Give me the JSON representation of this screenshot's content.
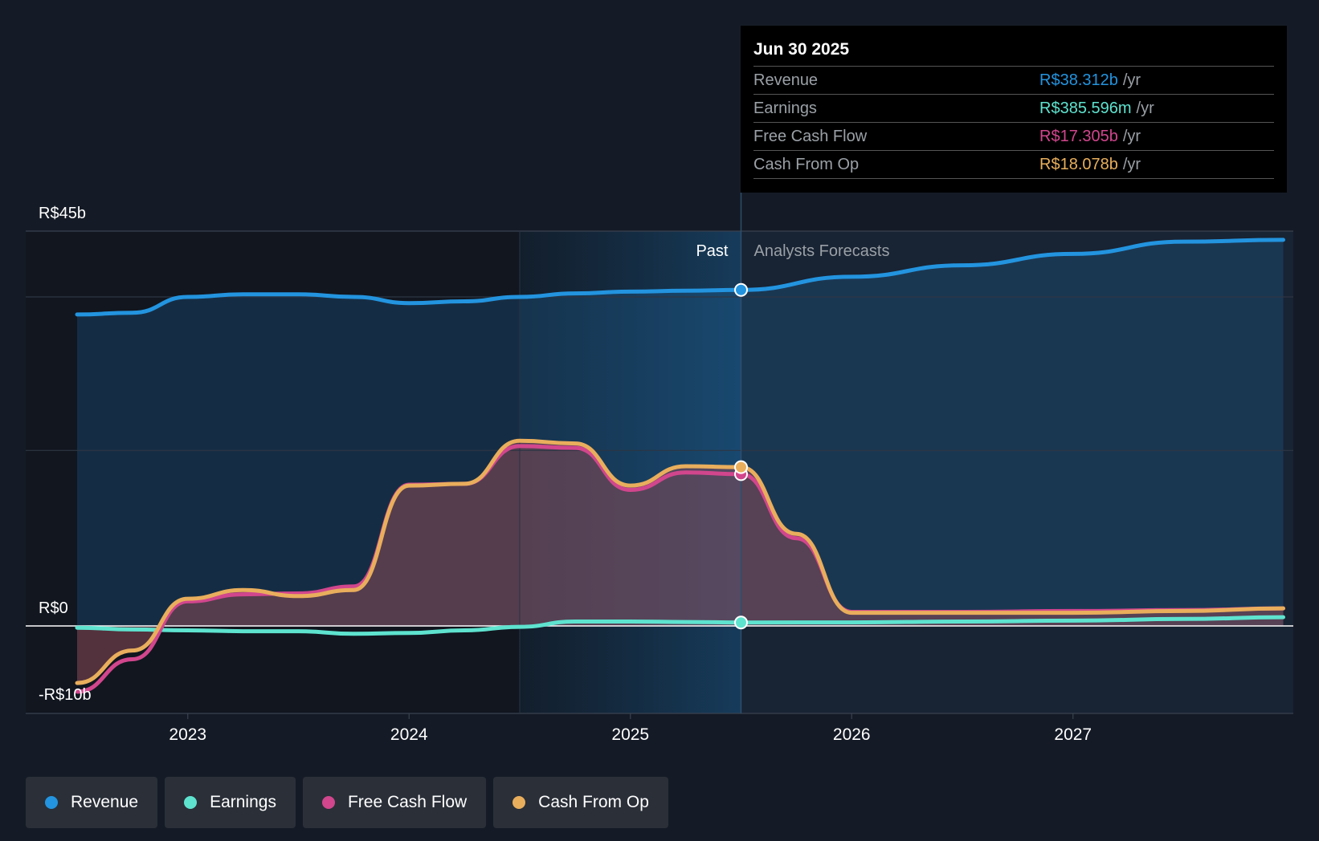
{
  "colors": {
    "revenue": "#2394df",
    "earnings": "#5ee3cf",
    "fcf": "#d1468d",
    "cfo": "#e9ae5c",
    "background": "#151b26"
  },
  "tooltip": {
    "date": "Jun 30 2025",
    "rows": [
      {
        "label": "Revenue",
        "value": "R$38.312b",
        "unit": "/yr"
      },
      {
        "label": "Earnings",
        "value": "R$385.596m",
        "unit": "/yr"
      },
      {
        "label": "Free Cash Flow",
        "value": "R$17.305b",
        "unit": "/yr"
      },
      {
        "label": "Cash From Op",
        "value": "R$18.078b",
        "unit": "/yr"
      }
    ]
  },
  "legend": [
    {
      "label": "Revenue",
      "icon": "revenue-dot-icon"
    },
    {
      "label": "Earnings",
      "icon": "earnings-dot-icon"
    },
    {
      "label": "Free Cash Flow",
      "icon": "fcf-dot-icon"
    },
    {
      "label": "Cash From Op",
      "icon": "cfo-dot-icon"
    }
  ],
  "chart_data": {
    "type": "line",
    "title": "",
    "xlabel": "",
    "ylabel": "",
    "x_range": [
      2022.5,
      2027.95
    ],
    "ylim": [
      -10,
      45
    ],
    "y_axis_labels": [
      "R$45b",
      "R$0",
      "-R$10b"
    ],
    "x_ticks": [
      "2023",
      "2024",
      "2025",
      "2026",
      "2027"
    ],
    "past_label": "Past",
    "forecast_label": "Analysts Forecasts",
    "past_end": 2025.5,
    "highlight_start": 2024.5,
    "series": [
      {
        "name": "Revenue",
        "unit": "R$b",
        "points": [
          [
            2022.5,
            35.5
          ],
          [
            2022.75,
            35.7
          ],
          [
            2023.0,
            37.5
          ],
          [
            2023.25,
            37.8
          ],
          [
            2023.5,
            37.8
          ],
          [
            2023.75,
            37.5
          ],
          [
            2024.0,
            36.8
          ],
          [
            2024.25,
            37.0
          ],
          [
            2024.5,
            37.5
          ],
          [
            2024.75,
            37.9
          ],
          [
            2025.0,
            38.1
          ],
          [
            2025.25,
            38.2
          ],
          [
            2025.5,
            38.3
          ],
          [
            2026.0,
            39.8
          ],
          [
            2026.5,
            41.1
          ],
          [
            2027.0,
            42.4
          ],
          [
            2027.5,
            43.8
          ],
          [
            2027.95,
            44.0
          ]
        ]
      },
      {
        "name": "Earnings",
        "unit": "R$b",
        "points": [
          [
            2022.5,
            -0.2
          ],
          [
            2022.75,
            -0.4
          ],
          [
            2023.0,
            -0.5
          ],
          [
            2023.25,
            -0.6
          ],
          [
            2023.5,
            -0.6
          ],
          [
            2023.75,
            -0.9
          ],
          [
            2024.0,
            -0.8
          ],
          [
            2024.25,
            -0.5
          ],
          [
            2024.5,
            -0.1
          ],
          [
            2024.75,
            0.5
          ],
          [
            2025.0,
            0.5
          ],
          [
            2025.25,
            0.45
          ],
          [
            2025.5,
            0.39
          ],
          [
            2026.0,
            0.4
          ],
          [
            2026.5,
            0.5
          ],
          [
            2027.0,
            0.6
          ],
          [
            2027.5,
            0.8
          ],
          [
            2027.95,
            1.0
          ]
        ]
      },
      {
        "name": "Free Cash Flow",
        "unit": "R$b",
        "points": [
          [
            2022.5,
            -7.5
          ],
          [
            2022.75,
            -3.8
          ],
          [
            2023.0,
            2.8
          ],
          [
            2023.25,
            3.6
          ],
          [
            2023.5,
            3.7
          ],
          [
            2023.75,
            4.5
          ],
          [
            2024.0,
            16.1
          ],
          [
            2024.25,
            16.2
          ],
          [
            2024.5,
            20.5
          ],
          [
            2024.75,
            20.3
          ],
          [
            2025.0,
            15.5
          ],
          [
            2025.25,
            17.5
          ],
          [
            2025.5,
            17.3
          ],
          [
            2025.75,
            10.0
          ],
          [
            2026.0,
            1.6
          ],
          [
            2026.5,
            1.6
          ],
          [
            2027.0,
            1.7
          ],
          [
            2027.5,
            1.8
          ],
          [
            2027.95,
            2.0
          ]
        ]
      },
      {
        "name": "Cash From Op",
        "unit": "R$b",
        "points": [
          [
            2022.5,
            -6.5
          ],
          [
            2022.75,
            -2.8
          ],
          [
            2023.0,
            3.1
          ],
          [
            2023.25,
            4.1
          ],
          [
            2023.5,
            3.4
          ],
          [
            2023.75,
            4.1
          ],
          [
            2024.0,
            16.0
          ],
          [
            2024.25,
            16.2
          ],
          [
            2024.5,
            21.1
          ],
          [
            2024.75,
            20.8
          ],
          [
            2025.0,
            16.0
          ],
          [
            2025.25,
            18.2
          ],
          [
            2025.5,
            18.1
          ],
          [
            2025.75,
            10.5
          ],
          [
            2026.0,
            1.5
          ],
          [
            2026.5,
            1.5
          ],
          [
            2027.0,
            1.5
          ],
          [
            2027.5,
            1.7
          ],
          [
            2027.95,
            2.0
          ]
        ]
      }
    ]
  }
}
